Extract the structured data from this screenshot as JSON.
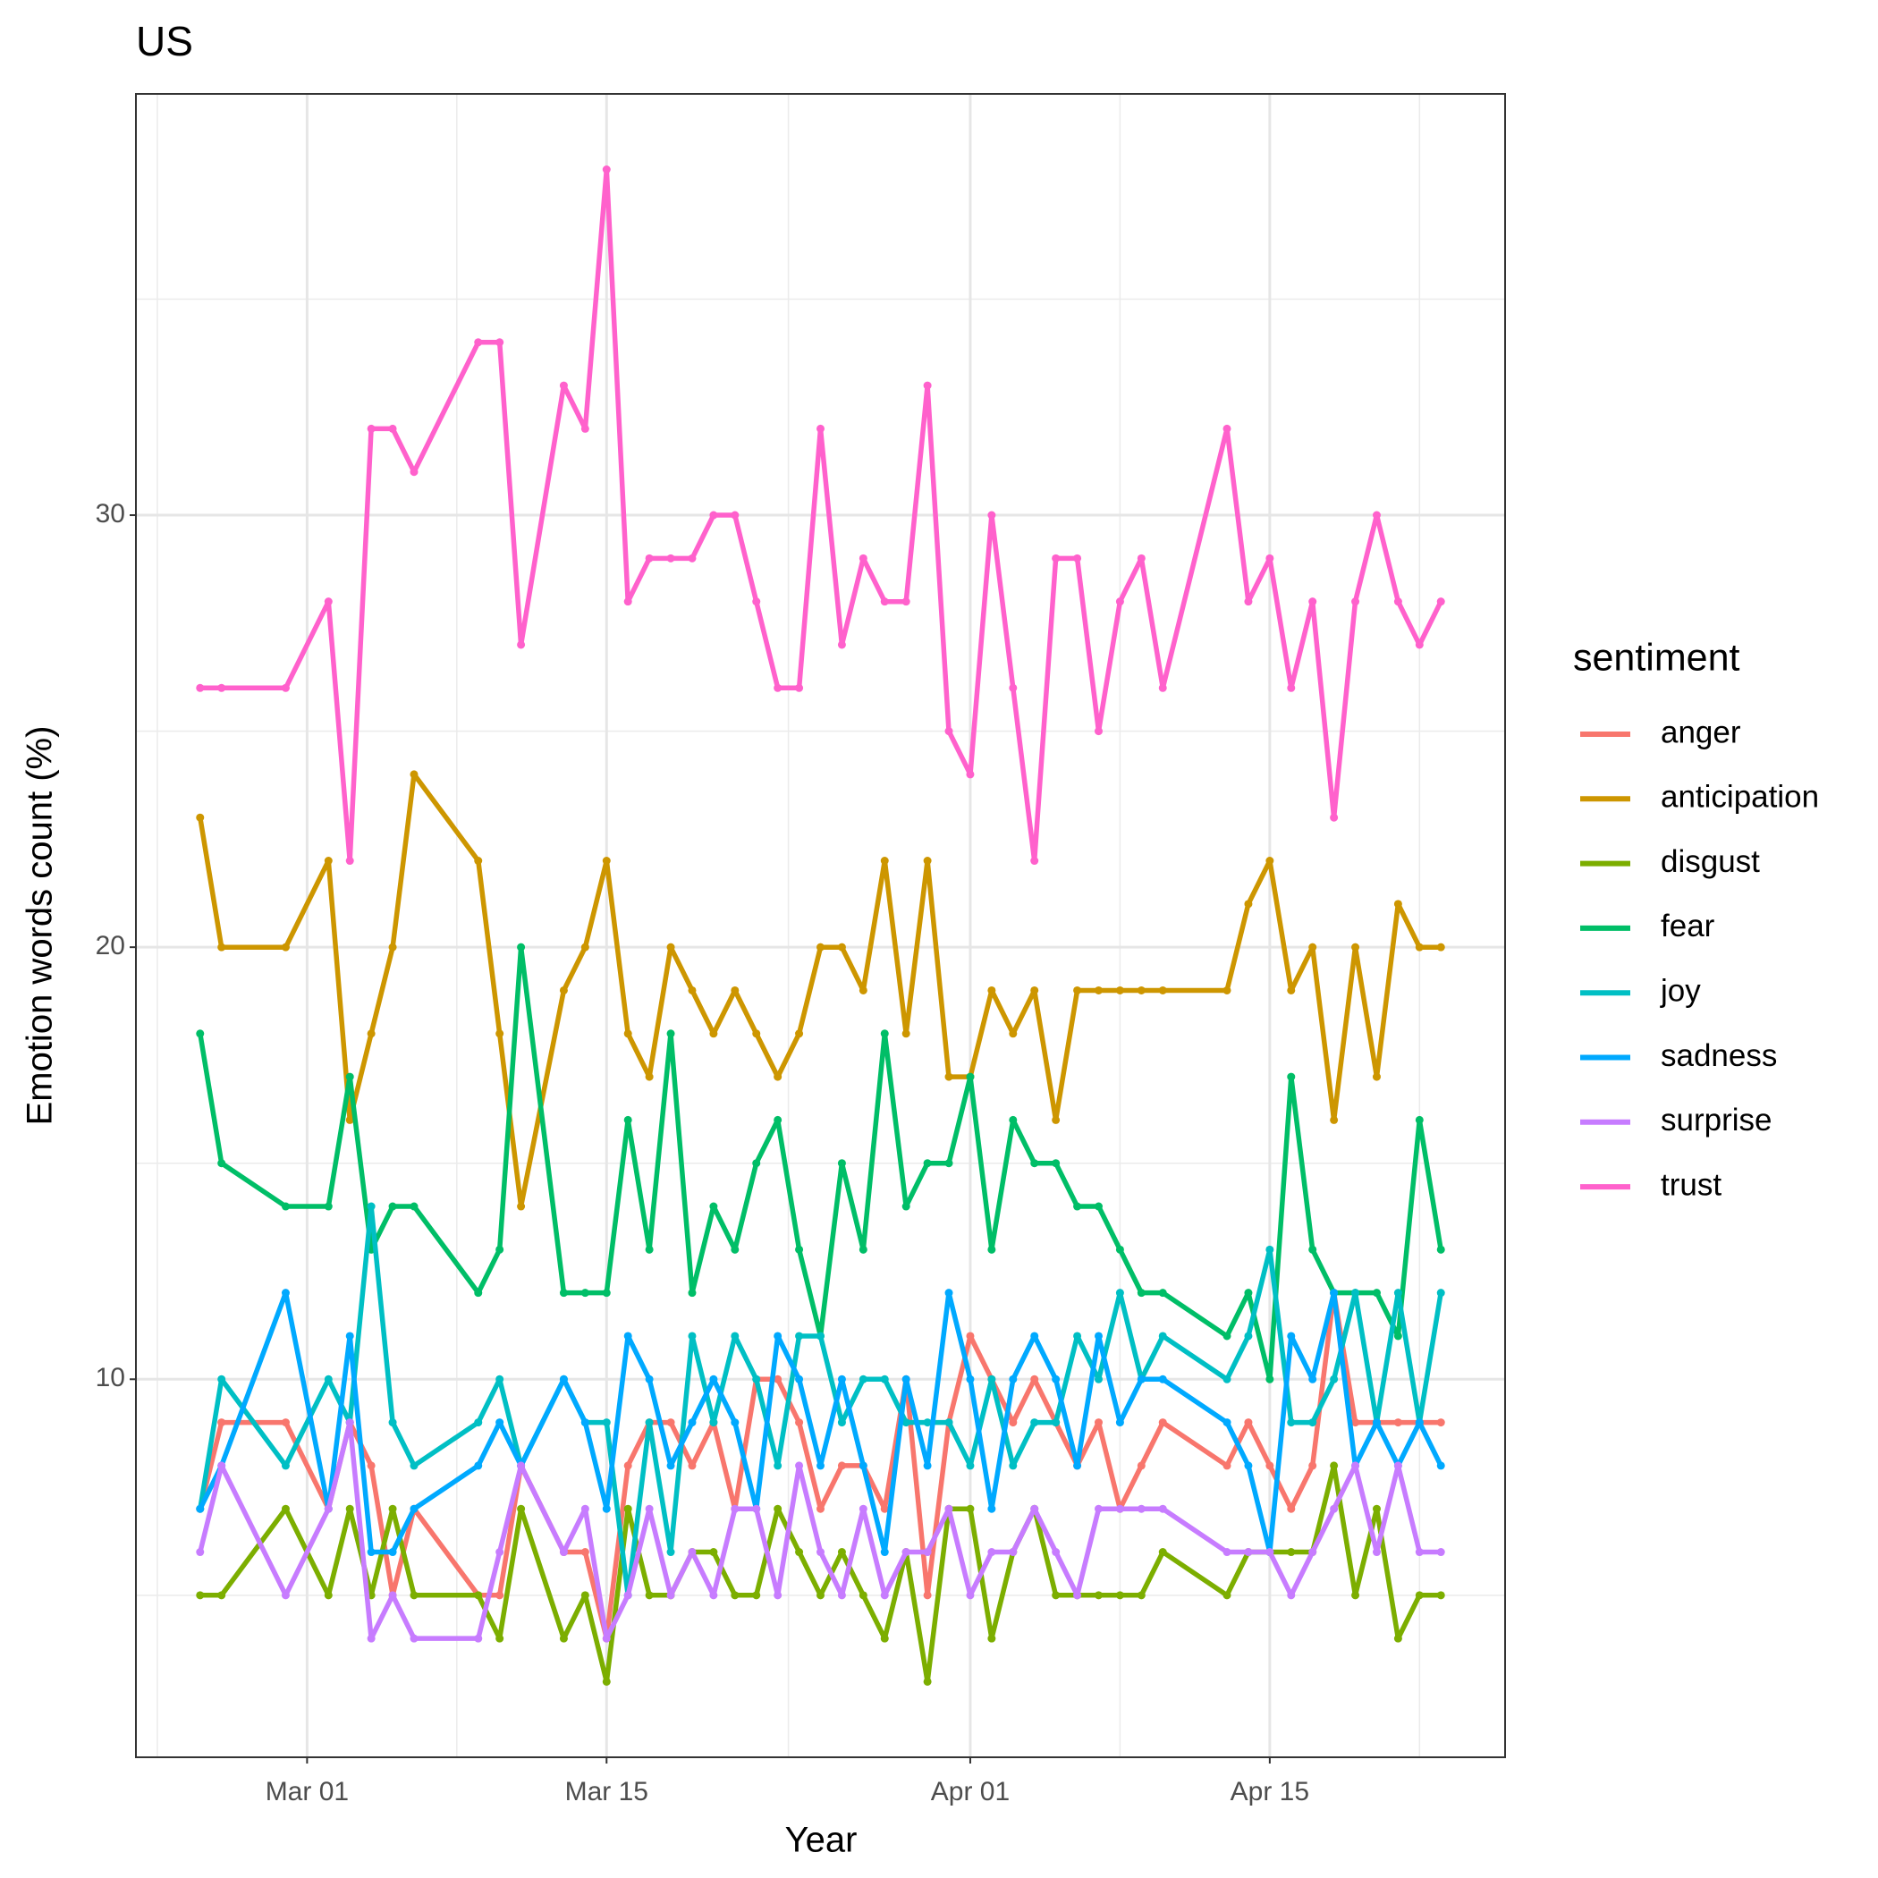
{
  "chart_data": {
    "type": "line",
    "title": "US",
    "x_label": "Year",
    "y_label": "Emotion words count (%)",
    "legend_title": "sentiment",
    "legend": "right",
    "grid": true,
    "x": [
      "Feb 25",
      "Feb 26",
      "Feb 29",
      "Mar 02",
      "Mar 03",
      "Mar 04",
      "Mar 05",
      "Mar 06",
      "Mar 09",
      "Mar 10",
      "Mar 11",
      "Mar 13",
      "Mar 14",
      "Mar 15",
      "Mar 16",
      "Mar 17",
      "Mar 18",
      "Mar 19",
      "Mar 20",
      "Mar 21",
      "Mar 22",
      "Mar 23",
      "Mar 24",
      "Mar 25",
      "Mar 26",
      "Mar 27",
      "Mar 28",
      "Mar 29",
      "Mar 30",
      "Mar 31",
      "Apr 01",
      "Apr 02",
      "Apr 03",
      "Apr 04",
      "Apr 05",
      "Apr 06",
      "Apr 07",
      "Apr 08",
      "Apr 09",
      "Apr 10",
      "Apr 13",
      "Apr 14",
      "Apr 15",
      "Apr 16",
      "Apr 17",
      "Apr 18",
      "Apr 19",
      "Apr 20",
      "Apr 21",
      "Apr 22",
      "Apr 23"
    ],
    "xlim": [
      "Feb 22",
      "Apr 26"
    ],
    "xticks": [
      "Mar 01",
      "Mar 15",
      "Apr 01",
      "Apr 15"
    ],
    "ylim": [
      1.25,
      39.75
    ],
    "yticks": [
      10,
      20,
      30
    ],
    "series": [
      {
        "name": "anger",
        "color": "#F8766D",
        "values": [
          7,
          9,
          9,
          7,
          9,
          8,
          5,
          7,
          5,
          5,
          8,
          6,
          6,
          4,
          8,
          9,
          9,
          8,
          9,
          7,
          10,
          10,
          9,
          7,
          8,
          8,
          7,
          10,
          5,
          9,
          11,
          10,
          9,
          10,
          9,
          8,
          9,
          7,
          8,
          9,
          8,
          9,
          8,
          7,
          8,
          12,
          9,
          9,
          9,
          9,
          9
        ]
      },
      {
        "name": "anticipation",
        "color": "#CD9600",
        "values": [
          23,
          20,
          20,
          22,
          16,
          18,
          20,
          24,
          22,
          18,
          14,
          19,
          20,
          22,
          18,
          17,
          20,
          19,
          18,
          19,
          18,
          17,
          18,
          20,
          20,
          19,
          22,
          18,
          22,
          17,
          17,
          19,
          18,
          19,
          16,
          19,
          19,
          19,
          19,
          19,
          19,
          21,
          22,
          19,
          20,
          16,
          20,
          17,
          21,
          20,
          20
        ]
      },
      {
        "name": "disgust",
        "color": "#7CAE00",
        "values": [
          5,
          5,
          7,
          5,
          7,
          5,
          7,
          5,
          5,
          4,
          7,
          4,
          5,
          3,
          7,
          5,
          5,
          6,
          6,
          5,
          5,
          7,
          6,
          5,
          6,
          5,
          4,
          6,
          3,
          7,
          7,
          4,
          6,
          7,
          5,
          5,
          5,
          5,
          5,
          6,
          5,
          6,
          6,
          6,
          6,
          8,
          5,
          7,
          4,
          5,
          5
        ]
      },
      {
        "name": "fear",
        "color": "#00BE67",
        "values": [
          18,
          15,
          14,
          14,
          17,
          13,
          14,
          14,
          12,
          13,
          20,
          12,
          12,
          12,
          16,
          13,
          18,
          12,
          14,
          13,
          15,
          16,
          13,
          11,
          15,
          13,
          18,
          14,
          15,
          15,
          17,
          13,
          16,
          15,
          15,
          14,
          14,
          13,
          12,
          12,
          11,
          12,
          10,
          17,
          13,
          12,
          12,
          12,
          11,
          16,
          13
        ]
      },
      {
        "name": "joy",
        "color": "#00BFC4",
        "values": [
          7,
          10,
          8,
          10,
          9,
          14,
          9,
          8,
          9,
          10,
          8,
          10,
          9,
          9,
          5,
          9,
          6,
          11,
          9,
          11,
          10,
          8,
          11,
          11,
          9,
          10,
          10,
          9,
          9,
          9,
          8,
          10,
          8,
          9,
          9,
          11,
          10,
          12,
          10,
          11,
          10,
          11,
          13,
          9,
          9,
          10,
          12,
          9,
          12,
          9,
          12
        ]
      },
      {
        "name": "sadness",
        "color": "#00A9FF",
        "values": [
          7,
          8,
          12,
          7,
          11,
          6,
          6,
          7,
          8,
          9,
          8,
          10,
          9,
          7,
          11,
          10,
          8,
          9,
          10,
          9,
          7,
          11,
          10,
          8,
          10,
          8,
          6,
          10,
          8,
          12,
          10,
          7,
          10,
          11,
          10,
          8,
          11,
          9,
          10,
          10,
          9,
          8,
          6,
          11,
          10,
          12,
          8,
          9,
          8,
          9,
          8
        ]
      },
      {
        "name": "surprise",
        "color": "#C77CFF",
        "values": [
          6,
          8,
          5,
          7,
          9,
          4,
          5,
          4,
          4,
          6,
          8,
          6,
          7,
          4,
          5,
          7,
          5,
          6,
          5,
          7,
          7,
          5,
          8,
          6,
          5,
          7,
          5,
          6,
          6,
          7,
          5,
          6,
          6,
          7,
          6,
          5,
          7,
          7,
          7,
          7,
          6,
          6,
          6,
          5,
          6,
          7,
          8,
          6,
          8,
          6,
          6
        ]
      },
      {
        "name": "trust",
        "color": "#FF61CC",
        "values": [
          26,
          26,
          26,
          28,
          22,
          32,
          32,
          31,
          34,
          34,
          27,
          33,
          32,
          38,
          28,
          29,
          29,
          29,
          30,
          30,
          28,
          26,
          26,
          32,
          27,
          29,
          28,
          28,
          33,
          25,
          24,
          30,
          26,
          22,
          29,
          29,
          25,
          28,
          29,
          26,
          32,
          28,
          29,
          26,
          28,
          23,
          28,
          30,
          28,
          27,
          28
        ]
      }
    ]
  }
}
